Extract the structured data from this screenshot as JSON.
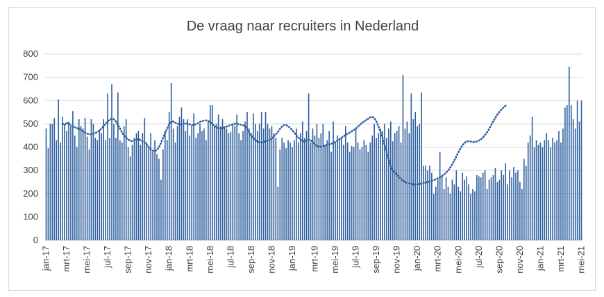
{
  "chart_data": {
    "type": "bar",
    "title": "De vraag naar recruiters in Nederland",
    "xlabel": "",
    "ylabel": "",
    "ylim": [
      0,
      800
    ],
    "yticks": [
      0,
      100,
      200,
      300,
      400,
      500,
      600,
      700,
      800
    ],
    "grid": true,
    "legend": "none",
    "bar_color": "#2e5f9e",
    "trend_color": "#2e5f9e",
    "xtick_labels": [
      "jan-17",
      "mrt-17",
      "mei-17",
      "jul-17",
      "sep-17",
      "nov-17",
      "jan-18",
      "mrt-18",
      "mei-18",
      "jul-18",
      "sep-18",
      "nov-18",
      "jan-19",
      "mrt-19",
      "mei-19",
      "jul-19",
      "sep-19",
      "nov-19",
      "jan-20",
      "mrt-20",
      "mei-20",
      "jul-20",
      "sep-20",
      "nov-20",
      "jan-21",
      "mrt-21",
      "mei-21"
    ],
    "series": [
      {
        "name": "",
        "values": [
          480,
          395,
          500,
          500,
          525,
          430,
          605,
          420,
          530,
          500,
          470,
          510,
          490,
          555,
          450,
          400,
          520,
          490,
          480,
          525,
          445,
          390,
          520,
          500,
          440,
          430,
          475,
          460,
          520,
          430,
          630,
          440,
          670,
          500,
          440,
          635,
          430,
          420,
          490,
          520,
          400,
          360,
          410,
          440,
          460,
          470,
          410,
          460,
          525,
          420,
          400,
          460,
          380,
          430,
          370,
          350,
          260,
          390,
          470,
          430,
          550,
          675,
          480,
          420,
          490,
          530,
          570,
          520,
          470,
          520,
          450,
          495,
          545,
          440,
          460,
          500,
          470,
          480,
          430,
          510,
          580,
          580,
          490,
          500,
          540,
          490,
          520,
          490,
          480,
          460,
          465,
          500,
          490,
          540,
          460,
          430,
          470,
          510,
          550,
          480,
          460,
          545,
          500,
          470,
          500,
          550,
          480,
          550,
          500,
          480,
          490,
          460,
          440,
          230,
          390,
          440,
          420,
          395,
          430,
          420,
          400,
          430,
          480,
          420,
          460,
          510,
          440,
          470,
          630,
          420,
          480,
          450,
          500,
          440,
          460,
          500,
          410,
          430,
          470,
          380,
          510,
          420,
          450,
          430,
          440,
          410,
          490,
          420,
          380,
          405,
          400,
          480,
          420,
          390,
          400,
          430,
          410,
          380,
          420,
          450,
          500,
          440,
          460,
          480,
          470,
          500,
          440,
          480,
          510,
          425,
          460,
          470,
          490,
          420,
          710,
          480,
          510,
          460,
          630,
          520,
          550,
          490,
          500,
          635,
          320,
          320,
          300,
          320,
          290,
          200,
          230,
          260,
          380,
          280,
          220,
          270,
          230,
          200,
          260,
          240,
          300,
          230,
          210,
          290,
          260,
          275,
          240,
          200,
          220,
          210,
          280,
          275,
          270,
          290,
          300,
          220,
          260,
          270,
          280,
          310,
          250,
          260,
          300,
          280,
          330,
          240,
          300,
          270,
          315,
          290,
          300,
          250,
          220,
          350,
          320,
          420,
          450,
          530,
          400,
          430,
          410,
          420,
          400,
          430,
          460,
          430,
          400,
          440,
          420,
          430,
          470,
          420,
          480,
          570,
          580,
          745,
          580,
          520,
          480,
          600,
          510,
          600
        ]
      },
      {
        "name": "",
        "type": "moving-average",
        "values": [
          null,
          null,
          null,
          null,
          null,
          null,
          null,
          null,
          500,
          495,
          505,
          500,
          495,
          490,
          485,
          482,
          478,
          475,
          468,
          462,
          458,
          455,
          455,
          458,
          460,
          465,
          470,
          480,
          490,
          500,
          510,
          518,
          522,
          520,
          510,
          495,
          480,
          462,
          450,
          440,
          432,
          428,
          425,
          430,
          432,
          435,
          430,
          425,
          420,
          412,
          400,
          390,
          385,
          382,
          388,
          400,
          418,
          440,
          460,
          480,
          498,
          508,
          510,
          505,
          500,
          498,
          498,
          500,
          502,
          500,
          498,
          495,
          495,
          498,
          502,
          508,
          512,
          514,
          515,
          512,
          508,
          500,
          492,
          486,
          482,
          480,
          482,
          485,
          488,
          492,
          495,
          498,
          500,
          500,
          498,
          496,
          494,
          490,
          478,
          462,
          450,
          440,
          430,
          425,
          420,
          420,
          422,
          425,
          428,
          432,
          438,
          445,
          455,
          465,
          478,
          488,
          495,
          495,
          490,
          482,
          472,
          462,
          450,
          440,
          432,
          426,
          424,
          428,
          432,
          430,
          420,
          410,
          405,
          402,
          402,
          404,
          408,
          410,
          412,
          414,
          418,
          422,
          428,
          434,
          440,
          446,
          452,
          458,
          462,
          468,
          474,
          480,
          488,
          496,
          504,
          510,
          516,
          522,
          528,
          530,
          525,
          510,
          490,
          465,
          440,
          410,
          380,
          350,
          320,
          300,
          290,
          280,
          270,
          262,
          256,
          250,
          246,
          244,
          242,
          240,
          240,
          240,
          242,
          244,
          246,
          248,
          250,
          252,
          255,
          258,
          262,
          266,
          270,
          276,
          282,
          290,
          300,
          312,
          326,
          342,
          360,
          378,
          394,
          408,
          418,
          424,
          426,
          424,
          422,
          422,
          424,
          428,
          434,
          442,
          452,
          464,
          478,
          494,
          510,
          526,
          540,
          552,
          562,
          570,
          578
        ]
      }
    ]
  }
}
